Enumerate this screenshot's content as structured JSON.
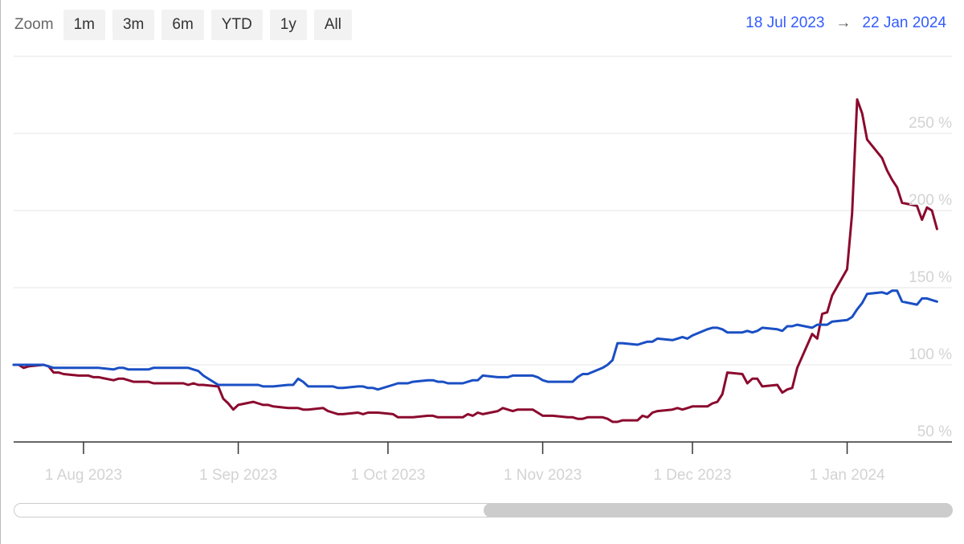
{
  "zoom": {
    "label": "Zoom",
    "buttons": [
      "1m",
      "3m",
      "6m",
      "YTD",
      "1y",
      "All"
    ]
  },
  "range": {
    "from": "18 Jul 2023",
    "arrow": "→",
    "to": "22 Jan 2024"
  },
  "scrollbar": {
    "start_fraction": 0.5,
    "end_fraction": 1.0
  },
  "chart_data": {
    "type": "line",
    "grid": true,
    "y_axis": {
      "range": [
        50,
        300
      ],
      "unit": "%",
      "ticks": [
        "50 %",
        "100 %",
        "150 %",
        "200 %",
        "250 %"
      ],
      "position": "right"
    },
    "x_axis": {
      "range": [
        "2023-07-18",
        "2024-01-22"
      ],
      "ticks": [
        "1 Aug 2023",
        "1 Sep 2023",
        "1 Oct 2023",
        "1 Nov 2023",
        "1 Dec 2023",
        "1 Jan 2024"
      ],
      "tick_dates": [
        "2023-08-01",
        "2023-09-01",
        "2023-10-01",
        "2023-11-01",
        "2023-12-01",
        "2024-01-01"
      ]
    },
    "series": [
      {
        "color": "#8b0a2e",
        "points": [
          [
            "2023-07-18",
            100
          ],
          [
            "2023-07-19",
            100
          ],
          [
            "2023-07-20",
            98
          ],
          [
            "2023-07-21",
            99
          ],
          [
            "2023-07-24",
            100
          ],
          [
            "2023-07-25",
            99
          ],
          [
            "2023-07-26",
            95
          ],
          [
            "2023-07-27",
            95
          ],
          [
            "2023-07-28",
            94
          ],
          [
            "2023-07-31",
            93
          ],
          [
            "2023-08-01",
            93
          ],
          [
            "2023-08-02",
            93
          ],
          [
            "2023-08-03",
            92
          ],
          [
            "2023-08-04",
            92
          ],
          [
            "2023-08-07",
            90
          ],
          [
            "2023-08-08",
            91
          ],
          [
            "2023-08-09",
            91
          ],
          [
            "2023-08-10",
            90
          ],
          [
            "2023-08-11",
            89
          ],
          [
            "2023-08-14",
            89
          ],
          [
            "2023-08-15",
            88
          ],
          [
            "2023-08-16",
            88
          ],
          [
            "2023-08-17",
            88
          ],
          [
            "2023-08-18",
            88
          ],
          [
            "2023-08-21",
            88
          ],
          [
            "2023-08-22",
            87
          ],
          [
            "2023-08-23",
            88
          ],
          [
            "2023-08-24",
            87
          ],
          [
            "2023-08-25",
            87
          ],
          [
            "2023-08-28",
            86
          ],
          [
            "2023-08-29",
            78
          ],
          [
            "2023-08-30",
            75
          ],
          [
            "2023-08-31",
            71
          ],
          [
            "2023-09-01",
            74
          ],
          [
            "2023-09-04",
            76
          ],
          [
            "2023-09-05",
            75
          ],
          [
            "2023-09-06",
            74
          ],
          [
            "2023-09-07",
            74
          ],
          [
            "2023-09-08",
            73
          ],
          [
            "2023-09-11",
            72
          ],
          [
            "2023-09-12",
            72
          ],
          [
            "2023-09-13",
            72
          ],
          [
            "2023-09-14",
            71
          ],
          [
            "2023-09-15",
            71
          ],
          [
            "2023-09-18",
            72
          ],
          [
            "2023-09-19",
            70
          ],
          [
            "2023-09-20",
            69
          ],
          [
            "2023-09-21",
            68
          ],
          [
            "2023-09-22",
            68
          ],
          [
            "2023-09-25",
            69
          ],
          [
            "2023-09-26",
            68
          ],
          [
            "2023-09-27",
            69
          ],
          [
            "2023-09-28",
            69
          ],
          [
            "2023-09-29",
            69
          ],
          [
            "2023-10-02",
            68
          ],
          [
            "2023-10-03",
            66
          ],
          [
            "2023-10-04",
            66
          ],
          [
            "2023-10-05",
            66
          ],
          [
            "2023-10-06",
            66
          ],
          [
            "2023-10-09",
            67
          ],
          [
            "2023-10-10",
            67
          ],
          [
            "2023-10-11",
            66
          ],
          [
            "2023-10-12",
            66
          ],
          [
            "2023-10-13",
            66
          ],
          [
            "2023-10-16",
            66
          ],
          [
            "2023-10-17",
            68
          ],
          [
            "2023-10-18",
            67
          ],
          [
            "2023-10-19",
            69
          ],
          [
            "2023-10-20",
            68
          ],
          [
            "2023-10-23",
            70
          ],
          [
            "2023-10-24",
            72
          ],
          [
            "2023-10-25",
            71
          ],
          [
            "2023-10-26",
            70
          ],
          [
            "2023-10-27",
            71
          ],
          [
            "2023-10-30",
            71
          ],
          [
            "2023-10-31",
            69
          ],
          [
            "2023-11-01",
            67
          ],
          [
            "2023-11-02",
            67
          ],
          [
            "2023-11-03",
            67
          ],
          [
            "2023-11-06",
            66
          ],
          [
            "2023-11-07",
            66
          ],
          [
            "2023-11-08",
            65
          ],
          [
            "2023-11-09",
            65
          ],
          [
            "2023-11-10",
            66
          ],
          [
            "2023-11-13",
            66
          ],
          [
            "2023-11-14",
            65
          ],
          [
            "2023-11-15",
            63
          ],
          [
            "2023-11-16",
            63
          ],
          [
            "2023-11-17",
            64
          ],
          [
            "2023-11-20",
            64
          ],
          [
            "2023-11-21",
            67
          ],
          [
            "2023-11-22",
            66
          ],
          [
            "2023-11-23",
            69
          ],
          [
            "2023-11-24",
            70
          ],
          [
            "2023-11-27",
            71
          ],
          [
            "2023-11-28",
            72
          ],
          [
            "2023-11-29",
            71
          ],
          [
            "2023-11-30",
            72
          ],
          [
            "2023-12-01",
            73
          ],
          [
            "2023-12-04",
            73
          ],
          [
            "2023-12-05",
            75
          ],
          [
            "2023-12-06",
            76
          ],
          [
            "2023-12-07",
            81
          ],
          [
            "2023-12-08",
            95
          ],
          [
            "2023-12-11",
            94
          ],
          [
            "2023-12-12",
            88
          ],
          [
            "2023-12-13",
            91
          ],
          [
            "2023-12-14",
            91
          ],
          [
            "2023-12-15",
            86
          ],
          [
            "2023-12-18",
            87
          ],
          [
            "2023-12-19",
            82
          ],
          [
            "2023-12-20",
            84
          ],
          [
            "2023-12-21",
            85
          ],
          [
            "2023-12-22",
            98
          ],
          [
            "2023-12-25",
            120
          ],
          [
            "2023-12-26",
            117
          ],
          [
            "2023-12-27",
            133
          ],
          [
            "2023-12-28",
            134
          ],
          [
            "2023-12-29",
            145
          ],
          [
            "2024-01-01",
            162
          ],
          [
            "2024-01-02",
            198
          ],
          [
            "2024-01-03",
            272
          ],
          [
            "2024-01-04",
            263
          ],
          [
            "2024-01-05",
            246
          ],
          [
            "2024-01-08",
            234
          ],
          [
            "2024-01-09",
            226
          ],
          [
            "2024-01-10",
            220
          ],
          [
            "2024-01-11",
            215
          ],
          [
            "2024-01-12",
            205
          ],
          [
            "2024-01-15",
            203
          ],
          [
            "2024-01-16",
            194
          ],
          [
            "2024-01-17",
            202
          ],
          [
            "2024-01-18",
            200
          ],
          [
            "2024-01-19",
            188
          ]
        ]
      },
      {
        "color": "#1a4fc4",
        "points": [
          [
            "2023-07-18",
            100
          ],
          [
            "2023-07-19",
            100
          ],
          [
            "2023-07-20",
            100
          ],
          [
            "2023-07-21",
            100
          ],
          [
            "2023-07-24",
            100
          ],
          [
            "2023-07-25",
            99
          ],
          [
            "2023-07-26",
            98
          ],
          [
            "2023-07-27",
            98
          ],
          [
            "2023-07-28",
            98
          ],
          [
            "2023-07-31",
            98
          ],
          [
            "2023-08-01",
            98
          ],
          [
            "2023-08-02",
            98
          ],
          [
            "2023-08-03",
            98
          ],
          [
            "2023-08-04",
            98
          ],
          [
            "2023-08-07",
            97
          ],
          [
            "2023-08-08",
            98
          ],
          [
            "2023-08-09",
            98
          ],
          [
            "2023-08-10",
            97
          ],
          [
            "2023-08-11",
            97
          ],
          [
            "2023-08-14",
            97
          ],
          [
            "2023-08-15",
            98
          ],
          [
            "2023-08-16",
            98
          ],
          [
            "2023-08-17",
            98
          ],
          [
            "2023-08-18",
            98
          ],
          [
            "2023-08-21",
            98
          ],
          [
            "2023-08-22",
            98
          ],
          [
            "2023-08-23",
            97
          ],
          [
            "2023-08-24",
            96
          ],
          [
            "2023-08-25",
            93
          ],
          [
            "2023-08-28",
            87
          ],
          [
            "2023-08-29",
            87
          ],
          [
            "2023-08-30",
            87
          ],
          [
            "2023-08-31",
            87
          ],
          [
            "2023-09-01",
            87
          ],
          [
            "2023-09-04",
            87
          ],
          [
            "2023-09-05",
            87
          ],
          [
            "2023-09-06",
            86
          ],
          [
            "2023-09-07",
            86
          ],
          [
            "2023-09-08",
            86
          ],
          [
            "2023-09-11",
            87
          ],
          [
            "2023-09-12",
            87
          ],
          [
            "2023-09-13",
            91
          ],
          [
            "2023-09-14",
            89
          ],
          [
            "2023-09-15",
            86
          ],
          [
            "2023-09-18",
            86
          ],
          [
            "2023-09-19",
            86
          ],
          [
            "2023-09-20",
            86
          ],
          [
            "2023-09-21",
            85
          ],
          [
            "2023-09-22",
            85
          ],
          [
            "2023-09-25",
            86
          ],
          [
            "2023-09-26",
            86
          ],
          [
            "2023-09-27",
            85
          ],
          [
            "2023-09-28",
            85
          ],
          [
            "2023-09-29",
            84
          ],
          [
            "2023-10-02",
            87
          ],
          [
            "2023-10-03",
            88
          ],
          [
            "2023-10-04",
            88
          ],
          [
            "2023-10-05",
            88
          ],
          [
            "2023-10-06",
            89
          ],
          [
            "2023-10-09",
            90
          ],
          [
            "2023-10-10",
            90
          ],
          [
            "2023-10-11",
            89
          ],
          [
            "2023-10-12",
            89
          ],
          [
            "2023-10-13",
            88
          ],
          [
            "2023-10-16",
            88
          ],
          [
            "2023-10-17",
            89
          ],
          [
            "2023-10-18",
            90
          ],
          [
            "2023-10-19",
            90
          ],
          [
            "2023-10-20",
            93
          ],
          [
            "2023-10-23",
            92
          ],
          [
            "2023-10-24",
            92
          ],
          [
            "2023-10-25",
            92
          ],
          [
            "2023-10-26",
            93
          ],
          [
            "2023-10-27",
            93
          ],
          [
            "2023-10-30",
            93
          ],
          [
            "2023-10-31",
            92
          ],
          [
            "2023-11-01",
            90
          ],
          [
            "2023-11-02",
            89
          ],
          [
            "2023-11-03",
            89
          ],
          [
            "2023-11-06",
            89
          ],
          [
            "2023-11-07",
            89
          ],
          [
            "2023-11-08",
            92
          ],
          [
            "2023-11-09",
            94
          ],
          [
            "2023-11-10",
            94
          ],
          [
            "2023-11-13",
            98
          ],
          [
            "2023-11-14",
            100
          ],
          [
            "2023-11-15",
            103
          ],
          [
            "2023-11-16",
            114
          ],
          [
            "2023-11-17",
            114
          ],
          [
            "2023-11-20",
            113
          ],
          [
            "2023-11-21",
            114
          ],
          [
            "2023-11-22",
            115
          ],
          [
            "2023-11-23",
            115
          ],
          [
            "2023-11-24",
            117
          ],
          [
            "2023-11-27",
            116
          ],
          [
            "2023-11-28",
            117
          ],
          [
            "2023-11-29",
            118
          ],
          [
            "2023-11-30",
            117
          ],
          [
            "2023-12-01",
            119
          ],
          [
            "2023-12-04",
            123
          ],
          [
            "2023-12-05",
            124
          ],
          [
            "2023-12-06",
            124
          ],
          [
            "2023-12-07",
            123
          ],
          [
            "2023-12-08",
            121
          ],
          [
            "2023-12-11",
            121
          ],
          [
            "2023-12-12",
            122
          ],
          [
            "2023-12-13",
            121
          ],
          [
            "2023-12-14",
            122
          ],
          [
            "2023-12-15",
            124
          ],
          [
            "2023-12-18",
            123
          ],
          [
            "2023-12-19",
            122
          ],
          [
            "2023-12-20",
            125
          ],
          [
            "2023-12-21",
            125
          ],
          [
            "2023-12-22",
            126
          ],
          [
            "2023-12-25",
            124
          ],
          [
            "2023-12-26",
            126
          ],
          [
            "2023-12-27",
            126
          ],
          [
            "2023-12-28",
            126
          ],
          [
            "2023-12-29",
            128
          ],
          [
            "2024-01-01",
            129
          ],
          [
            "2024-01-02",
            131
          ],
          [
            "2024-01-03",
            136
          ],
          [
            "2024-01-04",
            140
          ],
          [
            "2024-01-05",
            146
          ],
          [
            "2024-01-08",
            147
          ],
          [
            "2024-01-09",
            146
          ],
          [
            "2024-01-10",
            148
          ],
          [
            "2024-01-11",
            148
          ],
          [
            "2024-01-12",
            141
          ],
          [
            "2024-01-15",
            139
          ],
          [
            "2024-01-16",
            143
          ],
          [
            "2024-01-17",
            143
          ],
          [
            "2024-01-18",
            142
          ],
          [
            "2024-01-19",
            141
          ]
        ]
      }
    ]
  }
}
